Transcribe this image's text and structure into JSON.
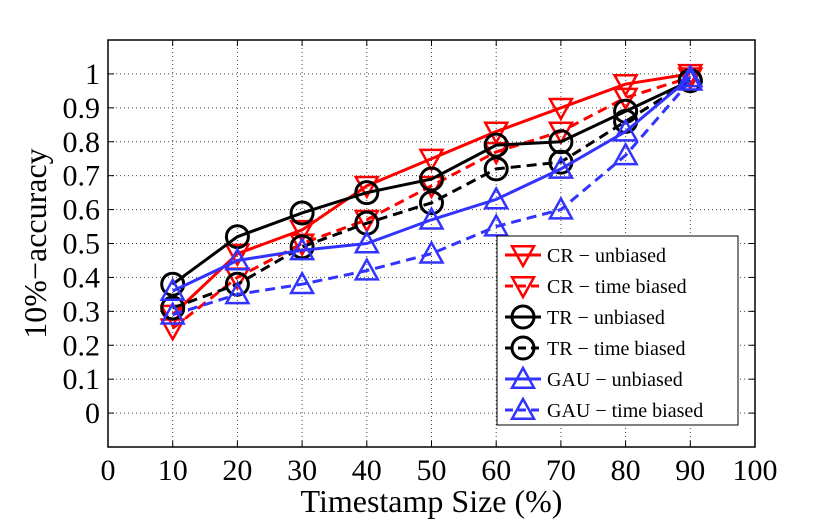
{
  "chart_data": {
    "type": "line",
    "title": "",
    "xlabel": "Timestamp Size (%)",
    "ylabel": "10%−accuracy",
    "xlim": [
      0,
      100
    ],
    "ylim": [
      -0.1,
      1.1
    ],
    "xticks": [
      0,
      10,
      20,
      30,
      40,
      50,
      60,
      70,
      80,
      90,
      100
    ],
    "yticks": [
      0,
      0.1,
      0.2,
      0.3,
      0.4,
      0.5,
      0.6,
      0.7,
      0.8,
      0.9,
      1
    ],
    "xtick_labels": [
      "0",
      "10",
      "20",
      "30",
      "40",
      "50",
      "60",
      "70",
      "80",
      "90",
      "100"
    ],
    "ytick_labels": [
      "0",
      "0.1",
      "0.2",
      "0.3",
      "0.4",
      "0.5",
      "0.6",
      "0.7",
      "0.8",
      "0.9",
      "1"
    ],
    "grid": true,
    "legend_position": "bottom-right",
    "x": [
      10,
      20,
      30,
      40,
      50,
      60,
      70,
      80,
      90
    ],
    "series": [
      {
        "name": "CR − unbiased",
        "color": "#ff0000",
        "marker": "triangle-down",
        "dash": "solid",
        "values": [
          0.29,
          0.47,
          0.54,
          0.67,
          0.75,
          0.83,
          0.9,
          0.97,
          1.0
        ]
      },
      {
        "name": "CR − time biased",
        "color": "#ff0000",
        "marker": "triangle-down",
        "dash": "dashed",
        "values": [
          0.25,
          0.4,
          0.5,
          0.57,
          0.67,
          0.77,
          0.83,
          0.93,
          0.99
        ]
      },
      {
        "name": "TR − unbiased",
        "color": "#000000",
        "marker": "circle",
        "dash": "solid",
        "values": [
          0.38,
          0.52,
          0.59,
          0.65,
          0.69,
          0.79,
          0.8,
          0.89,
          0.98
        ]
      },
      {
        "name": "TR − time biased",
        "color": "#000000",
        "marker": "circle",
        "dash": "dashed",
        "values": [
          0.31,
          0.38,
          0.49,
          0.56,
          0.62,
          0.72,
          0.74,
          0.86,
          0.98
        ]
      },
      {
        "name": "GAU − unbiased",
        "color": "#3333ff",
        "marker": "triangle-up",
        "dash": "solid",
        "values": [
          0.36,
          0.45,
          0.48,
          0.5,
          0.57,
          0.63,
          0.72,
          0.83,
          0.99
        ]
      },
      {
        "name": "GAU − time biased",
        "color": "#3333ff",
        "marker": "triangle-up",
        "dash": "dashed",
        "values": [
          0.29,
          0.35,
          0.38,
          0.42,
          0.47,
          0.55,
          0.6,
          0.76,
          0.98
        ]
      }
    ]
  }
}
